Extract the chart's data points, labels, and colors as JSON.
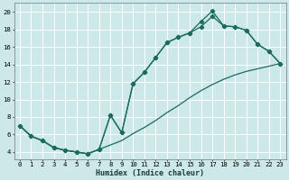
{
  "xlabel": "Humidex (Indice chaleur)",
  "bg_color": "#cce8e8",
  "grid_color": "#ffffff",
  "line_color": "#1a6b5a",
  "xlim": [
    -0.5,
    23.5
  ],
  "ylim": [
    3.2,
    21
  ],
  "x_ticks": [
    0,
    1,
    2,
    3,
    4,
    5,
    6,
    7,
    8,
    9,
    10,
    11,
    12,
    13,
    14,
    15,
    16,
    17,
    18,
    19,
    20,
    21,
    22,
    23
  ],
  "y_ticks": [
    4,
    6,
    8,
    10,
    12,
    14,
    16,
    18,
    20
  ],
  "line1_x": [
    0,
    1,
    2,
    3,
    4,
    5,
    6,
    7,
    8,
    9,
    10,
    11,
    12,
    13,
    14,
    15,
    16,
    17,
    18,
    19,
    20,
    21,
    22,
    23
  ],
  "line1_y": [
    7.0,
    5.8,
    5.3,
    4.5,
    4.2,
    4.0,
    3.8,
    4.3,
    8.2,
    6.2,
    11.8,
    13.1,
    14.8,
    16.5,
    17.1,
    17.6,
    18.9,
    20.1,
    18.4,
    18.3,
    17.9,
    16.3,
    15.5,
    14.1
  ],
  "line2_x": [
    0,
    1,
    2,
    3,
    4,
    5,
    6,
    7,
    8,
    9,
    10,
    11,
    12,
    13,
    14,
    15,
    16,
    17,
    18,
    19,
    20,
    21,
    22,
    23
  ],
  "line2_y": [
    7.0,
    5.8,
    5.3,
    4.5,
    4.2,
    4.0,
    3.8,
    4.3,
    8.2,
    6.2,
    11.8,
    13.1,
    14.8,
    16.5,
    17.1,
    17.6,
    18.3,
    19.5,
    18.4,
    18.3,
    17.9,
    16.3,
    15.5,
    14.1
  ],
  "line3_x": [
    0,
    1,
    2,
    3,
    4,
    5,
    6,
    7,
    8,
    9,
    10,
    11,
    12,
    13,
    14,
    15,
    16,
    17,
    18,
    19,
    20,
    21,
    22,
    23
  ],
  "line3_y": [
    7.0,
    5.8,
    5.3,
    4.5,
    4.2,
    4.0,
    3.8,
    4.3,
    4.8,
    5.3,
    6.1,
    6.8,
    7.6,
    8.5,
    9.3,
    10.2,
    11.0,
    11.7,
    12.3,
    12.8,
    13.2,
    13.5,
    13.8,
    14.1
  ],
  "xlabel_fontsize": 6.0,
  "tick_fontsize": 5.2,
  "linewidth": 0.9,
  "markersize": 2.2
}
